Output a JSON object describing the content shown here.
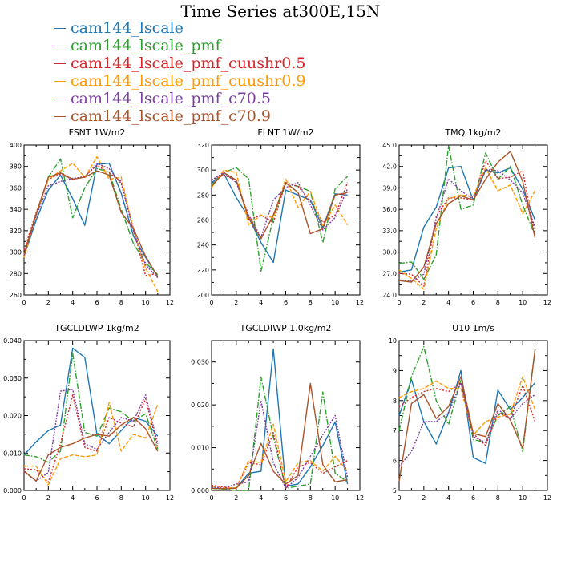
{
  "title": "Time Series at300E,15N",
  "series_colors": [
    "#1f77b4",
    "#2ca02c",
    "#d62728",
    "#ff9900",
    "#7a3fa0",
    "#a9542b"
  ],
  "legend": [
    {
      "label": "cam144_lscale",
      "color": "#1f77b4"
    },
    {
      "label": "cam144_lscale_pmf",
      "color": "#2ca02c"
    },
    {
      "label": "cam144_lscale_pmf_cuushr0.5",
      "color": "#d62728"
    },
    {
      "label": "cam144_lscale_pmf_cuushr0.9",
      "color": "#ff9900"
    },
    {
      "label": "cam144_lscale_pmf_c70.5",
      "color": "#7a3fa0"
    },
    {
      "label": "cam144_lscale_pmf_c70.9",
      "color": "#a9542b"
    }
  ],
  "chart_data": [
    {
      "type": "line",
      "title": "FSNT",
      "units": "1W/m2",
      "xlim": [
        0,
        12
      ],
      "xticks": [
        0,
        2,
        4,
        6,
        8,
        10,
        12
      ],
      "ylim": [
        260,
        400
      ],
      "yticks": [
        260,
        280,
        300,
        320,
        340,
        360,
        380,
        400
      ],
      "ytick_labels": [
        "260",
        "280",
        "300",
        "320",
        "340",
        "360",
        "380",
        "400"
      ],
      "x": [
        0,
        1,
        2,
        3,
        4,
        5,
        6,
        7,
        8,
        9,
        10,
        11
      ],
      "series": [
        {
          "name": "cam144_lscale",
          "values": [
            296,
            330,
            358,
            372,
            350,
            325,
            382,
            383,
            355,
            315,
            295,
            277
          ]
        },
        {
          "name": "cam144_lscale_pmf",
          "values": [
            298,
            335,
            370,
            387,
            332,
            360,
            378,
            375,
            340,
            308,
            290,
            279
          ]
        },
        {
          "name": "cam144_lscale_pmf_cuushr0.5",
          "values": [
            302,
            337,
            368,
            373,
            368,
            371,
            381,
            374,
            366,
            322,
            278,
            280
          ]
        },
        {
          "name": "cam144_lscale_pmf_cuushr0.9",
          "values": [
            295,
            335,
            368,
            376,
            383,
            370,
            389,
            368,
            370,
            320,
            285,
            263
          ]
        },
        {
          "name": "cam144_lscale_pmf_c70.5",
          "values": [
            297,
            334,
            362,
            366,
            369,
            370,
            383,
            378,
            364,
            320,
            288,
            276
          ]
        },
        {
          "name": "cam144_lscale_pmf_c70.9",
          "values": [
            298,
            336,
            370,
            374,
            368,
            370,
            376,
            372,
            337,
            322,
            296,
            277
          ]
        }
      ]
    },
    {
      "type": "line",
      "title": "FLNT",
      "units": "1W/m2",
      "xlim": [
        0,
        12
      ],
      "xticks": [
        0,
        2,
        4,
        6,
        8,
        10,
        12
      ],
      "ylim": [
        200,
        320
      ],
      "yticks": [
        200,
        220,
        240,
        260,
        280,
        300,
        320
      ],
      "ytick_labels": [
        "200",
        "220",
        "240",
        "260",
        "280",
        "300",
        "320"
      ],
      "x": [
        0,
        1,
        2,
        3,
        4,
        5,
        6,
        7,
        8,
        9,
        10,
        11
      ],
      "series": [
        {
          "name": "cam144_lscale",
          "values": [
            290,
            297,
            278,
            262,
            242,
            226,
            284,
            280,
            276,
            254,
            281,
            280
          ]
        },
        {
          "name": "cam144_lscale_pmf",
          "values": [
            288,
            298,
            302,
            293,
            219,
            262,
            289,
            287,
            283,
            242,
            285,
            295
          ]
        },
        {
          "name": "cam144_lscale_pmf_cuushr0.5",
          "values": [
            292,
            296,
            292,
            260,
            264,
            258,
            290,
            287,
            275,
            258,
            264,
            290
          ]
        },
        {
          "name": "cam144_lscale_pmf_cuushr0.9",
          "values": [
            286,
            300,
            298,
            256,
            264,
            262,
            293,
            270,
            283,
            255,
            272,
            256
          ]
        },
        {
          "name": "cam144_lscale_pmf_c70.5",
          "values": [
            292,
            298,
            290,
            264,
            246,
            276,
            286,
            290,
            272,
            252,
            262,
            285
          ]
        },
        {
          "name": "cam144_lscale_pmf_c70.9",
          "values": [
            287,
            298,
            292,
            262,
            245,
            264,
            290,
            282,
            249,
            253,
            280,
            282
          ]
        }
      ]
    },
    {
      "type": "line",
      "title": "TMQ",
      "units": "1kg/m2",
      "xlim": [
        0,
        12
      ],
      "xticks": [
        0,
        2,
        4,
        6,
        8,
        10,
        12
      ],
      "ylim": [
        24,
        45
      ],
      "yticks": [
        24,
        27,
        30,
        33,
        36,
        39,
        42,
        45
      ],
      "ytick_labels": [
        "24.0",
        "27.0",
        "30.0",
        "33.0",
        "36.0",
        "39.0",
        "42.0",
        "45.0"
      ],
      "x": [
        0,
        1,
        2,
        3,
        4,
        5,
        6,
        7,
        8,
        9,
        10,
        11
      ],
      "series": [
        {
          "name": "cam144_lscale",
          "values": [
            27.2,
            27.5,
            33.5,
            36.3,
            41.8,
            42.0,
            37.3,
            41.5,
            41.1,
            41.8,
            38.8,
            34.5
          ]
        },
        {
          "name": "cam144_lscale_pmf",
          "values": [
            28.4,
            28.6,
            26.2,
            29.6,
            44.9,
            36.0,
            36.6,
            43.9,
            40.2,
            42.0,
            36.6,
            32.3
          ]
        },
        {
          "name": "cam144_lscale_pmf_cuushr0.5",
          "values": [
            27.0,
            26.9,
            25.2,
            35.0,
            37.6,
            37.6,
            37.3,
            42.8,
            40.3,
            40.5,
            41.4,
            32.3
          ]
        },
        {
          "name": "cam144_lscale_pmf_cuushr0.9",
          "values": [
            27.5,
            26.3,
            24.8,
            33.3,
            37.5,
            38.0,
            37.8,
            41.8,
            38.6,
            39.4,
            35.4,
            38.6
          ]
        },
        {
          "name": "cam144_lscale_pmf_c70.5",
          "values": [
            26.1,
            25.9,
            26.9,
            34.7,
            40.3,
            38.6,
            37.4,
            41.6,
            41.4,
            40.1,
            38.3,
            33.5
          ]
        },
        {
          "name": "cam144_lscale_pmf_c70.9",
          "values": [
            26.0,
            25.8,
            27.9,
            34.0,
            36.8,
            37.9,
            37.3,
            40.2,
            42.6,
            44.1,
            39.9,
            32.0
          ]
        }
      ]
    },
    {
      "type": "line",
      "title": "TGCLDLWP",
      "units": "1kg/m2",
      "xlim": [
        0,
        12
      ],
      "xticks": [
        0,
        2,
        4,
        6,
        8,
        10,
        12
      ],
      "ylim": [
        0,
        0.04
      ],
      "yticks": [
        0,
        0.01,
        0.02,
        0.03,
        0.04
      ],
      "ytick_labels": [
        "0.000",
        "0.010",
        "0.020",
        "0.030",
        "0.040"
      ],
      "x": [
        0,
        1,
        2,
        3,
        4,
        5,
        6,
        7,
        8,
        9,
        10,
        11
      ],
      "series": [
        {
          "name": "cam144_lscale",
          "values": [
            0.0095,
            0.013,
            0.016,
            0.0175,
            0.038,
            0.0355,
            0.015,
            0.0125,
            0.016,
            0.0195,
            0.0185,
            0.0145
          ]
        },
        {
          "name": "cam144_lscale_pmf",
          "values": [
            0.0095,
            0.009,
            0.0075,
            0.0105,
            0.0365,
            0.0155,
            0.0145,
            0.022,
            0.021,
            0.0185,
            0.0205,
            0.011
          ]
        },
        {
          "name": "cam144_lscale_pmf_cuushr0.5",
          "values": [
            0.0058,
            0.0055,
            0.0022,
            0.0125,
            0.0255,
            0.0115,
            0.0105,
            0.0195,
            0.018,
            0.017,
            0.0245,
            0.0115
          ]
        },
        {
          "name": "cam144_lscale_pmf_cuushr0.9",
          "values": [
            0.0065,
            0.0065,
            0.0015,
            0.0085,
            0.0095,
            0.009,
            0.0095,
            0.0235,
            0.0105,
            0.015,
            0.014,
            0.023
          ]
        },
        {
          "name": "cam144_lscale_pmf_c70.5",
          "values": [
            0.005,
            0.0025,
            0.0048,
            0.0265,
            0.027,
            0.0125,
            0.011,
            0.0155,
            0.0195,
            0.0185,
            0.0255,
            0.0125
          ]
        },
        {
          "name": "cam144_lscale_pmf_c70.9",
          "values": [
            0.0052,
            0.0025,
            0.0095,
            0.0115,
            0.0125,
            0.014,
            0.015,
            0.0145,
            0.0175,
            0.0195,
            0.0165,
            0.0105
          ]
        }
      ]
    },
    {
      "type": "line",
      "title": "TGCLDIWP",
      "units": "1.0kg/m2",
      "xlim": [
        0,
        12
      ],
      "xticks": [
        0,
        2,
        4,
        6,
        8,
        10,
        12
      ],
      "ylim": [
        0,
        0.035
      ],
      "yticks": [
        0,
        0.01,
        0.02,
        0.03
      ],
      "ytick_labels": [
        "0.000",
        "0.010",
        "0.020",
        "0.030"
      ],
      "x": [
        0,
        1,
        2,
        3,
        4,
        5,
        6,
        7,
        8,
        9,
        10,
        11
      ],
      "series": [
        {
          "name": "cam144_lscale",
          "values": [
            0.0005,
            0.0004,
            0.0006,
            0.004,
            0.0045,
            0.033,
            0.001,
            0.0015,
            0.0055,
            0.0105,
            0.016,
            0.0015
          ]
        },
        {
          "name": "cam144_lscale_pmf",
          "values": [
            0.0005,
            0.0003,
            0.0,
            0.0,
            0.0265,
            0.0125,
            0.0005,
            0.001,
            0.0015,
            0.023,
            0.004,
            0.002
          ]
        },
        {
          "name": "cam144_lscale_pmf_cuushr0.5",
          "values": [
            0.0012,
            0.0008,
            0.0005,
            0.0065,
            0.006,
            0.0135,
            0.0005,
            0.0055,
            0.0065,
            0.004,
            0.0055,
            0.007
          ]
        },
        {
          "name": "cam144_lscale_pmf_cuushr0.9",
          "values": [
            0.001,
            0.0006,
            0.0006,
            0.007,
            0.0065,
            0.0155,
            0.002,
            0.0065,
            0.007,
            0.0045,
            0.008,
            0.0045
          ]
        },
        {
          "name": "cam144_lscale_pmf_c70.5",
          "values": [
            0.0008,
            0.0005,
            0.0015,
            0.002,
            0.021,
            0.0065,
            0.0005,
            0.003,
            0.008,
            0.013,
            0.0175,
            0.003
          ]
        },
        {
          "name": "cam144_lscale_pmf_c70.9",
          "values": [
            0.0005,
            0.0004,
            0.0005,
            0.0035,
            0.011,
            0.0045,
            0.0015,
            0.0035,
            0.025,
            0.006,
            0.002,
            0.0025
          ]
        }
      ]
    },
    {
      "type": "line",
      "title": "U10",
      "units": "1m/s",
      "xlim": [
        0,
        12
      ],
      "xticks": [
        0,
        2,
        4,
        6,
        8,
        10,
        12
      ],
      "ylim": [
        5,
        10
      ],
      "yticks": [
        5,
        6,
        7,
        8,
        9,
        10
      ],
      "ytick_labels": [
        "5",
        "6",
        "7",
        "8",
        "9",
        "10"
      ],
      "x": [
        0,
        1,
        2,
        3,
        4,
        5,
        6,
        7,
        8,
        9,
        10,
        11
      ],
      "series": [
        {
          "name": "cam144_lscale",
          "values": [
            7.5,
            8.7,
            7.3,
            6.55,
            7.6,
            9.0,
            6.1,
            5.9,
            8.35,
            7.7,
            8.1,
            8.6
          ]
        },
        {
          "name": "cam144_lscale_pmf",
          "values": [
            7.0,
            8.8,
            9.8,
            8.0,
            7.2,
            8.7,
            6.7,
            6.6,
            7.5,
            7.8,
            6.3,
            9.7
          ]
        },
        {
          "name": "cam144_lscale_pmf_cuushr0.5",
          "values": [
            7.8,
            8.1,
            8.3,
            8.4,
            8.3,
            8.6,
            6.9,
            6.5,
            7.6,
            7.4,
            8.5,
            7.3
          ]
        },
        {
          "name": "cam144_lscale_pmf_cuushr0.9",
          "values": [
            8.1,
            8.3,
            8.4,
            8.65,
            8.4,
            8.4,
            6.85,
            7.3,
            7.45,
            7.55,
            8.8,
            7.7
          ]
        },
        {
          "name": "cam144_lscale_pmf_c70.5",
          "values": [
            5.8,
            6.3,
            7.3,
            7.3,
            7.6,
            8.6,
            6.8,
            6.6,
            7.7,
            7.4,
            7.9,
            8.2
          ]
        },
        {
          "name": "cam144_lscale_pmf_c70.9",
          "values": [
            5.3,
            7.9,
            8.2,
            7.4,
            7.8,
            8.8,
            6.9,
            6.8,
            7.9,
            7.35,
            6.4,
            9.7
          ]
        }
      ]
    }
  ]
}
